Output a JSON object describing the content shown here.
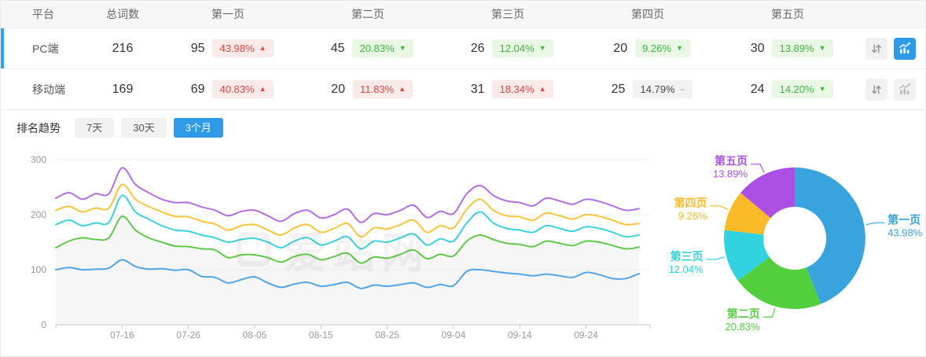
{
  "colors": {
    "accent": "#2F9AE8",
    "selected_row_bar": "#2AA7F2",
    "badge_red_text": "#E2453F",
    "badge_red_bg": "#FBEAEA",
    "badge_green_text": "#3DB83D",
    "badge_green_bg": "#E9F7E4",
    "badge_gray_bg": "#F2F2F2",
    "area_fill": "#F6F6F6",
    "axis_line": "#C9C9C9",
    "grid_line": "#ECECEC",
    "tick_text": "#999999"
  },
  "icons": {
    "sort": "sort-arrows-icon",
    "trend_chart": "trend-chart-icon",
    "up": "▲",
    "down": "▼",
    "flat": "−"
  },
  "table": {
    "columns": [
      "平台",
      "总词数",
      "第一页",
      "第二页",
      "第三页",
      "第四页",
      "第五页"
    ],
    "rows": [
      {
        "platform": "PC端",
        "total": "216",
        "selected": true,
        "chart_button_active": true,
        "pages": [
          {
            "count": "95",
            "pct": "43.98%",
            "trend": "up",
            "tone": "red"
          },
          {
            "count": "45",
            "pct": "20.83%",
            "trend": "down",
            "tone": "green"
          },
          {
            "count": "26",
            "pct": "12.04%",
            "trend": "down",
            "tone": "green"
          },
          {
            "count": "20",
            "pct": "9.26%",
            "trend": "down",
            "tone": "green"
          },
          {
            "count": "30",
            "pct": "13.89%",
            "trend": "down",
            "tone": "green"
          }
        ]
      },
      {
        "platform": "移动端",
        "total": "169",
        "selected": false,
        "chart_button_active": false,
        "pages": [
          {
            "count": "69",
            "pct": "40.83%",
            "trend": "up",
            "tone": "red"
          },
          {
            "count": "20",
            "pct": "11.83%",
            "trend": "up",
            "tone": "red"
          },
          {
            "count": "31",
            "pct": "18.34%",
            "trend": "up",
            "tone": "red"
          },
          {
            "count": "25",
            "pct": "14.79%",
            "trend": "flat",
            "tone": "gray"
          },
          {
            "count": "24",
            "pct": "14.20%",
            "trend": "down",
            "tone": "green"
          }
        ]
      }
    ]
  },
  "trend": {
    "label": "排名趋势",
    "tabs": [
      {
        "label": "7天",
        "active": false
      },
      {
        "label": "30天",
        "active": false
      },
      {
        "label": "3个月",
        "active": true
      }
    ]
  },
  "watermark": "爱站网",
  "chart_data": [
    {
      "type": "line",
      "title": "排名趋势 - 3个月 (PC端, 各线为第一页~第五页累计词数)",
      "stacked_cumulative": true,
      "grid": true,
      "legend": "none",
      "ylim": [
        0,
        300
      ],
      "yticks": [
        0,
        100,
        200,
        300
      ],
      "x_ticks": [
        "07-16",
        "07-26",
        "08-05",
        "08-15",
        "08-25",
        "09-04",
        "09-14",
        "09-24"
      ],
      "x_step_days": 2,
      "series": [
        {
          "name": "第一页",
          "color": "#4FA5E5",
          "area": true,
          "values": [
            100,
            104,
            100,
            101,
            103,
            118,
            106,
            101,
            102,
            99,
            100,
            88,
            86,
            76,
            82,
            87,
            76,
            68,
            74,
            77,
            70,
            73,
            77,
            66,
            72,
            70,
            73,
            76,
            68,
            73,
            71,
            97,
            100,
            97,
            94,
            92,
            89,
            92,
            89,
            86,
            95,
            91,
            84,
            84,
            93
          ]
        },
        {
          "name": "第二页(累计)",
          "color": "#5FC947",
          "area": true,
          "values": [
            140,
            152,
            158,
            155,
            158,
            197,
            172,
            158,
            150,
            143,
            142,
            138,
            136,
            122,
            127,
            127,
            122,
            114,
            124,
            128,
            118,
            124,
            130,
            112,
            123,
            121,
            128,
            136,
            120,
            128,
            125,
            152,
            163,
            155,
            148,
            146,
            142,
            152,
            148,
            144,
            152,
            150,
            144,
            138,
            141
          ]
        },
        {
          "name": "第三页(累计)",
          "color": "#3CD2DD",
          "area": false,
          "values": [
            182,
            190,
            180,
            185,
            186,
            235,
            205,
            192,
            180,
            172,
            170,
            163,
            158,
            150,
            155,
            157,
            150,
            140,
            152,
            158,
            145,
            152,
            160,
            138,
            152,
            150,
            158,
            165,
            145,
            156,
            152,
            185,
            205,
            185,
            175,
            172,
            168,
            180,
            175,
            170,
            178,
            175,
            168,
            160,
            163
          ]
        },
        {
          "name": "第四页(累计)",
          "color": "#FAC43B",
          "area": false,
          "values": [
            208,
            215,
            205,
            212,
            212,
            255,
            228,
            215,
            205,
            197,
            196,
            188,
            183,
            172,
            180,
            182,
            172,
            163,
            176,
            182,
            168,
            175,
            184,
            160,
            176,
            174,
            182,
            190,
            168,
            180,
            176,
            210,
            228,
            208,
            198,
            196,
            190,
            203,
            198,
            192,
            200,
            197,
            190,
            182,
            184
          ]
        },
        {
          "name": "第五页(累计)",
          "color": "#B26FE3",
          "area": false,
          "values": [
            230,
            240,
            228,
            238,
            238,
            285,
            255,
            240,
            228,
            222,
            222,
            214,
            208,
            198,
            206,
            208,
            198,
            188,
            202,
            208,
            194,
            200,
            210,
            186,
            202,
            200,
            208,
            217,
            195,
            206,
            202,
            238,
            253,
            235,
            225,
            222,
            216,
            230,
            225,
            219,
            228,
            224,
            216,
            208,
            211
          ]
        }
      ]
    },
    {
      "type": "pie",
      "donut": true,
      "title": "PC端各页占比",
      "start_angle": "top-clockwise",
      "slices": [
        {
          "label": "第一页",
          "value": 43.98,
          "pct_label": "43.98%",
          "color": "#38A3DC"
        },
        {
          "label": "第二页",
          "value": 20.83,
          "pct_label": "20.83%",
          "color": "#53CE3D"
        },
        {
          "label": "第三页",
          "value": 12.04,
          "pct_label": "12.04%",
          "color": "#30D2DF"
        },
        {
          "label": "第四页",
          "value": 9.26,
          "pct_label": "9.26%",
          "color": "#FBBA28"
        },
        {
          "label": "第五页",
          "value": 13.89,
          "pct_label": "13.89%",
          "color": "#AB50E3"
        }
      ]
    }
  ]
}
